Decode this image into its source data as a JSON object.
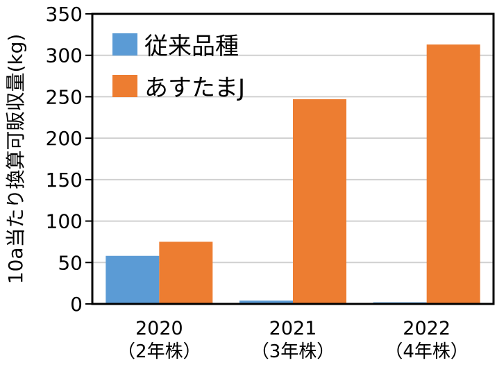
{
  "chart_data": {
    "type": "bar",
    "categories": [
      "2020",
      "2021",
      "2022"
    ],
    "category_sublabels": [
      "（2年株）",
      "（3年株）",
      "（4年株）"
    ],
    "series": [
      {
        "name": "従来品種",
        "color": "#5B9BD5",
        "values": [
          58,
          4,
          2
        ]
      },
      {
        "name": "あすたまJ",
        "color": "#ED7D31",
        "values": [
          75,
          247,
          313
        ]
      }
    ],
    "ylabel": "10a当たり換算可販収量(kg)",
    "ylim": [
      0,
      350
    ],
    "yticks": [
      0,
      50,
      100,
      150,
      200,
      250,
      300,
      350
    ],
    "grid": true,
    "legend": "top-left"
  }
}
